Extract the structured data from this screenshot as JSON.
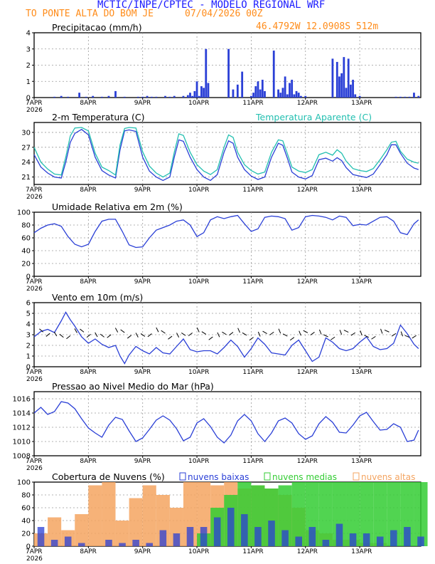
{
  "header": {
    "title": "MCTIC/INPE/CPTEC - MODELO REGIONAL WRF",
    "location": "TO PONTE ALTA DO BOM JE",
    "date": "07/04/2026 00Z",
    "coords": "46.4792W 12.0908S 512m"
  },
  "colors": {
    "title": "#1a1aff",
    "header_orange": "#ff8c1a",
    "series_blue": "#2a3fd6",
    "apparent_cyan": "#22bfb0",
    "clouds_green": "#33cc33",
    "clouds_orange": "#f4a460",
    "grid": "#9a9a9a"
  },
  "x_axis": {
    "tick_labels": [
      "7APR",
      "8APR",
      "9APR",
      "10APR",
      "11APR",
      "12APR",
      "13APR"
    ],
    "year_label": "2026"
  },
  "chart_data": [
    {
      "id": "precip",
      "type": "bar",
      "title": "Precipitacao (mm/h)",
      "ylim": [
        0,
        4
      ],
      "yticks": [
        0,
        1,
        2,
        3,
        4
      ],
      "grid": true,
      "x_hours": [
        9,
        12,
        15,
        20,
        23,
        26,
        30,
        33,
        36,
        40,
        46,
        48,
        50,
        52,
        54,
        58,
        60,
        62,
        66,
        68,
        69,
        70,
        71,
        72,
        73,
        74,
        75,
        76,
        77,
        86,
        88,
        90,
        92,
        96,
        97,
        98,
        99,
        100,
        101,
        102,
        106,
        108,
        109,
        110,
        111,
        112,
        113,
        114,
        115,
        116,
        117,
        118,
        120,
        132,
        134,
        135,
        136,
        137,
        138,
        139,
        140,
        141,
        142,
        144,
        160,
        162,
        164,
        166,
        168,
        170
      ],
      "values": [
        0.05,
        0.1,
        0.05,
        0.3,
        0.05,
        0.1,
        0.05,
        0.1,
        0.4,
        0.05,
        0.05,
        0.05,
        0.1,
        0.05,
        0.05,
        0.1,
        0.05,
        0.1,
        0.1,
        0.15,
        0.3,
        0.1,
        0.4,
        1.0,
        0.1,
        0.7,
        0.6,
        3.0,
        0.9,
        3.0,
        0.5,
        0.8,
        1.6,
        0.1,
        0.3,
        0.7,
        1.0,
        0.5,
        1.1,
        0.4,
        2.9,
        0.5,
        0.3,
        0.6,
        1.3,
        0.2,
        0.9,
        1.1,
        0.2,
        0.4,
        0.3,
        0.1,
        0.1,
        2.4,
        2.2,
        1.3,
        1.5,
        2.5,
        0.6,
        2.4,
        0.8,
        1.1,
        0.2,
        0.1,
        0.05,
        0.05,
        0.05,
        0.05,
        0.3,
        0.1
      ],
      "bar_color": "#2a3fd6"
    },
    {
      "id": "temp",
      "type": "line",
      "title": "2-m Temperatura (C)",
      "legend": "Temperatura Aparente (C)",
      "ylim": [
        19.5,
        32
      ],
      "yticks": [
        21,
        24,
        27,
        30
      ],
      "grid": true,
      "x": [
        0,
        3,
        6,
        9,
        12,
        14,
        16,
        18,
        21,
        24,
        27,
        30,
        33,
        36,
        38,
        40,
        42,
        45,
        48,
        51,
        54,
        57,
        60,
        62,
        64,
        66,
        69,
        72,
        75,
        78,
        81,
        84,
        86,
        88,
        90,
        93,
        96,
        99,
        102,
        105,
        108,
        110,
        112,
        114,
        117,
        120,
        123,
        126,
        129,
        132,
        134,
        136,
        138,
        141,
        144,
        147,
        150,
        153,
        156,
        158,
        160,
        162,
        165,
        168,
        170
      ],
      "series": [
        {
          "name": "2-m Temperatura (C)",
          "color": "#2a3fd6",
          "values": [
            25.5,
            23.0,
            21.8,
            21.0,
            20.8,
            24.0,
            28.0,
            29.8,
            30.6,
            29.5,
            25.0,
            22.3,
            21.4,
            20.8,
            26.5,
            30.3,
            30.5,
            30.2,
            25.0,
            22.2,
            21.0,
            20.3,
            21.0,
            25.0,
            28.5,
            28.2,
            25.0,
            22.5,
            21.0,
            20.3,
            21.5,
            26.0,
            28.3,
            27.8,
            25.0,
            22.5,
            21.2,
            20.5,
            21.0,
            25.0,
            27.8,
            27.4,
            24.8,
            22.0,
            21.0,
            20.6,
            21.3,
            24.5,
            24.8,
            24.2,
            24.9,
            24.3,
            22.9,
            21.5,
            21.2,
            20.9,
            21.6,
            23.5,
            25.5,
            27.5,
            27.5,
            25.8,
            23.8,
            22.8,
            22.5
          ]
        },
        {
          "name": "Temperatura Aparente (C)",
          "color": "#22bfb0",
          "values": [
            27.0,
            24.0,
            22.6,
            21.6,
            21.4,
            25.0,
            29.3,
            30.9,
            31.0,
            30.3,
            25.8,
            23.0,
            22.3,
            21.4,
            27.5,
            30.8,
            31.0,
            30.9,
            26.1,
            23.2,
            21.8,
            21.0,
            21.8,
            26.0,
            29.7,
            29.4,
            26.0,
            23.5,
            22.2,
            21.5,
            22.5,
            27.0,
            29.5,
            29.0,
            26.0,
            23.5,
            22.3,
            21.6,
            22.0,
            26.0,
            28.5,
            28.3,
            25.7,
            23.0,
            22.2,
            21.9,
            22.5,
            25.5,
            26.0,
            25.4,
            26.5,
            25.8,
            24.2,
            22.7,
            22.3,
            22.1,
            22.7,
            24.5,
            26.5,
            28.0,
            28.2,
            26.2,
            24.6,
            24.0,
            23.8
          ]
        }
      ]
    },
    {
      "id": "rh",
      "type": "line",
      "title": "Umidade Relativa em 2m (%)",
      "ylim": [
        0,
        100
      ],
      "yticks": [
        0,
        20,
        40,
        60,
        80,
        100
      ],
      "grid": true,
      "x": [
        0,
        3,
        6,
        9,
        12,
        15,
        18,
        21,
        24,
        27,
        30,
        33,
        36,
        39,
        42,
        45,
        48,
        51,
        54,
        57,
        60,
        63,
        66,
        69,
        72,
        75,
        78,
        81,
        84,
        87,
        90,
        93,
        96,
        99,
        102,
        105,
        108,
        111,
        114,
        117,
        120,
        123,
        126,
        129,
        132,
        135,
        138,
        141,
        144,
        147,
        150,
        153,
        156,
        159,
        162,
        165,
        168,
        170
      ],
      "series": [
        {
          "name": "Umidade Relativa em 2m (%)",
          "color": "#2a3fd6",
          "values": [
            68,
            75,
            80,
            82,
            78,
            62,
            50,
            46,
            50,
            70,
            86,
            89,
            89,
            70,
            49,
            45,
            46,
            60,
            72,
            76,
            80,
            86,
            88,
            80,
            62,
            68,
            88,
            93,
            90,
            93,
            95,
            82,
            70,
            74,
            92,
            94,
            93,
            90,
            72,
            76,
            93,
            95,
            94,
            92,
            88,
            94,
            92,
            79,
            81,
            80,
            86,
            92,
            93,
            86,
            68,
            65,
            82,
            88
          ]
        }
      ]
    },
    {
      "id": "wind",
      "type": "line",
      "title": "Vento em 10m (m/s)",
      "ylim": [
        0,
        6
      ],
      "yticks": [
        0,
        1,
        2,
        3,
        4,
        5,
        6
      ],
      "grid": true,
      "x": [
        0,
        3,
        6,
        9,
        12,
        14,
        16,
        18,
        21,
        24,
        27,
        30,
        33,
        36,
        38,
        40,
        42,
        45,
        48,
        51,
        54,
        57,
        60,
        63,
        66,
        69,
        72,
        75,
        78,
        81,
        84,
        87,
        90,
        93,
        96,
        99,
        102,
        105,
        108,
        111,
        114,
        117,
        120,
        123,
        126,
        129,
        132,
        135,
        138,
        141,
        144,
        147,
        150,
        153,
        156,
        159,
        162,
        165,
        168,
        170
      ],
      "series": [
        {
          "name": "Vento em 10m (m/s)",
          "color": "#2a3fd6",
          "values": [
            2.8,
            3.3,
            3.5,
            3.2,
            4.3,
            5.1,
            4.4,
            3.8,
            2.8,
            2.2,
            2.6,
            2.1,
            1.8,
            2.0,
            1.0,
            0.3,
            1.1,
            1.9,
            1.5,
            1.2,
            1.8,
            1.3,
            1.2,
            1.9,
            2.6,
            1.6,
            1.4,
            1.5,
            1.5,
            1.2,
            1.8,
            2.5,
            1.9,
            0.9,
            1.7,
            2.7,
            2.1,
            1.3,
            1.2,
            1.1,
            2.0,
            2.5,
            1.5,
            0.5,
            0.9,
            2.7,
            2.3,
            1.7,
            1.5,
            1.7,
            2.3,
            2.8,
            1.9,
            1.6,
            1.7,
            2.2,
            3.9,
            3.1,
            2.1,
            1.7
          ]
        }
      ]
    },
    {
      "id": "pressure",
      "type": "line",
      "title": "Pressao ao Nivel Medio do Mar (hPa)",
      "ylim": [
        1008,
        1017
      ],
      "yticks": [
        1008,
        1010,
        1012,
        1014,
        1016
      ],
      "grid": true,
      "x": [
        0,
        3,
        6,
        9,
        12,
        15,
        18,
        21,
        24,
        27,
        30,
        33,
        36,
        39,
        42,
        45,
        48,
        51,
        54,
        57,
        60,
        63,
        66,
        69,
        72,
        75,
        78,
        81,
        84,
        87,
        90,
        93,
        96,
        99,
        102,
        105,
        108,
        111,
        114,
        117,
        120,
        123,
        126,
        129,
        132,
        135,
        138,
        141,
        144,
        147,
        150,
        153,
        156,
        159,
        162,
        165,
        168,
        170
      ],
      "series": [
        {
          "name": "Pressao ao Nivel Medio do Mar (hPa)",
          "color": "#2a3fd6",
          "values": [
            1014.0,
            1014.8,
            1013.8,
            1014.2,
            1015.6,
            1015.4,
            1014.6,
            1013.2,
            1011.9,
            1011.2,
            1010.6,
            1012.3,
            1013.4,
            1013.1,
            1011.5,
            1010.0,
            1010.5,
            1011.7,
            1013.0,
            1013.6,
            1013.0,
            1011.8,
            1010.1,
            1010.6,
            1012.6,
            1013.2,
            1012.1,
            1010.6,
            1009.8,
            1010.9,
            1012.9,
            1013.8,
            1012.9,
            1011.1,
            1010.0,
            1011.2,
            1012.9,
            1013.3,
            1012.6,
            1011.1,
            1010.3,
            1010.8,
            1012.5,
            1013.5,
            1012.7,
            1011.3,
            1011.2,
            1012.3,
            1013.6,
            1014.1,
            1012.8,
            1011.6,
            1011.7,
            1012.5,
            1012.0,
            1010.0,
            1010.2,
            1011.6
          ]
        }
      ]
    },
    {
      "id": "clouds",
      "type": "bar",
      "title": "Cobertura de Nuvens (%)",
      "legend": [
        "nuvens baixas",
        "nuvens medias",
        "nuvens altas"
      ],
      "ylim": [
        0,
        100
      ],
      "yticks": [
        0,
        20,
        40,
        60,
        80,
        100
      ],
      "grid": true,
      "x_hours": [
        0,
        6,
        12,
        18,
        24,
        30,
        36,
        42,
        48,
        54,
        60,
        66,
        72,
        78,
        84,
        90,
        96,
        102,
        108,
        114,
        120,
        126,
        132,
        138,
        144,
        150,
        156,
        162,
        168
      ],
      "series": [
        {
          "name": "nuvens altas",
          "color": "#f4a460",
          "values": [
            20,
            45,
            25,
            50,
            95,
            100,
            40,
            75,
            95,
            80,
            60,
            100,
            100,
            95,
            100,
            90,
            95,
            90,
            80,
            60,
            25,
            20,
            10,
            10,
            5,
            5,
            0,
            0,
            0
          ]
        },
        {
          "name": "nuvens medias",
          "color": "#33cc33",
          "values": [
            0,
            0,
            0,
            0,
            0,
            0,
            0,
            0,
            0,
            0,
            0,
            0,
            20,
            60,
            80,
            100,
            95,
            90,
            95,
            100,
            100,
            100,
            100,
            100,
            100,
            100,
            100,
            100,
            100
          ]
        },
        {
          "name": "nuvens baixas",
          "color": "#2a3fd6",
          "values": [
            30,
            10,
            15,
            5,
            0,
            10,
            5,
            10,
            5,
            25,
            20,
            30,
            30,
            45,
            60,
            50,
            30,
            40,
            25,
            15,
            30,
            10,
            35,
            20,
            20,
            15,
            25,
            30,
            15
          ]
        }
      ]
    }
  ]
}
